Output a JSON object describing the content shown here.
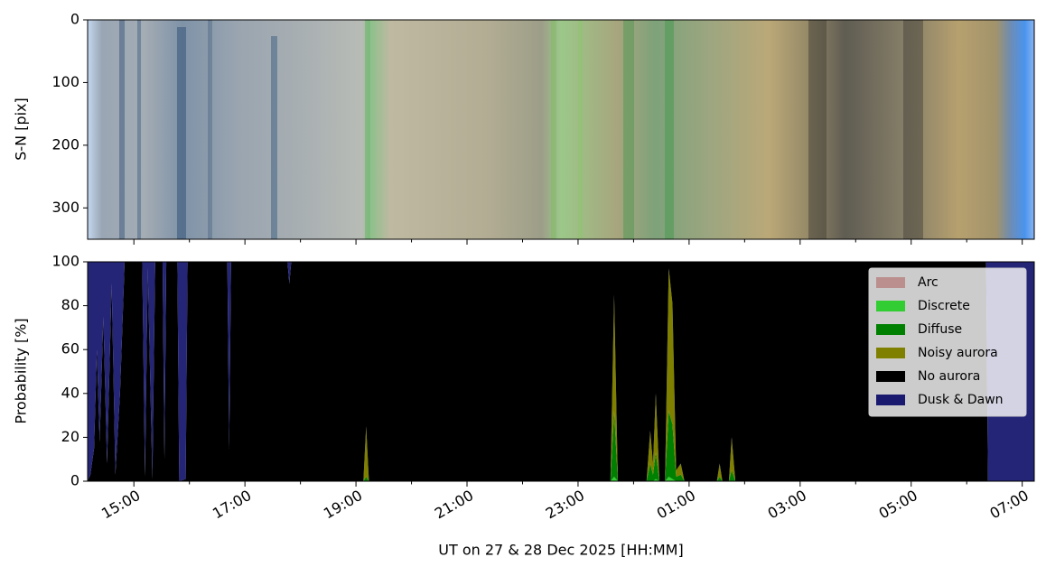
{
  "chart_data": [
    {
      "type": "image",
      "ylabel": "S-N [pix]",
      "ylim": [
        350,
        0
      ],
      "yticks": [
        0,
        100,
        200,
        300
      ]
    },
    {
      "type": "stacked_area",
      "ylabel": "Probability [%]",
      "xlabel": "UT on 27 & 28 Dec 2025 [HH:MM]",
      "ylim": [
        0,
        100
      ],
      "yticks": [
        0,
        20,
        40,
        60,
        80,
        100
      ],
      "legend": "upper right",
      "xlim": [
        "2025-12-27T14:10",
        "2025-12-28T07:13"
      ],
      "xticks": [
        {
          "value": "2025-12-27T15:00",
          "label": "15:00"
        },
        {
          "value": "2025-12-27T17:00",
          "label": "17:00"
        },
        {
          "value": "2025-12-27T19:00",
          "label": "19:00"
        },
        {
          "value": "2025-12-27T21:00",
          "label": "21:00"
        },
        {
          "value": "2025-12-27T23:00",
          "label": "23:00"
        },
        {
          "value": "2025-12-28T01:00",
          "label": "01:00"
        },
        {
          "value": "2025-12-28T03:00",
          "label": "03:00"
        },
        {
          "value": "2025-12-28T05:00",
          "label": "05:00"
        },
        {
          "value": "2025-12-28T07:00",
          "label": "07:00"
        }
      ],
      "xticks_minor": [
        "2025-12-27T16:00",
        "2025-12-27T18:00",
        "2025-12-27T20:00",
        "2025-12-27T22:00",
        "2025-12-28T00:00",
        "2025-12-28T02:00",
        "2025-12-28T04:00",
        "2025-12-28T06:00"
      ],
      "x": [
        "2025-12-27T14:10",
        "2025-12-27T14:13",
        "2025-12-27T14:17",
        "2025-12-27T14:20",
        "2025-12-27T14:23",
        "2025-12-27T14:27",
        "2025-12-27T14:31",
        "2025-12-27T14:36",
        "2025-12-27T14:40",
        "2025-12-27T14:45",
        "2025-12-27T14:50",
        "2025-12-27T15:09",
        "2025-12-27T15:12",
        "2025-12-27T15:15",
        "2025-12-27T15:20",
        "2025-12-27T15:23",
        "2025-12-27T15:31",
        "2025-12-27T15:33",
        "2025-12-27T15:35",
        "2025-12-27T15:47",
        "2025-12-27T15:49",
        "2025-12-27T15:56",
        "2025-12-27T15:58",
        "2025-12-27T16:41",
        "2025-12-27T16:43",
        "2025-12-27T16:45",
        "2025-12-27T17:46",
        "2025-12-27T17:48",
        "2025-12-27T17:50",
        "2025-12-27T19:08",
        "2025-12-27T19:11",
        "2025-12-27T19:14",
        "2025-12-27T23:35",
        "2025-12-27T23:39",
        "2025-12-27T23:43",
        "2025-12-28T00:14",
        "2025-12-28T00:18",
        "2025-12-28T00:21",
        "2025-12-28T00:24",
        "2025-12-28T00:28",
        "2025-12-28T00:34",
        "2025-12-28T00:38",
        "2025-12-28T00:42",
        "2025-12-28T00:46",
        "2025-12-28T00:51",
        "2025-12-28T00:55",
        "2025-12-28T01:30",
        "2025-12-28T01:33",
        "2025-12-28T01:36",
        "2025-12-28T01:43",
        "2025-12-28T01:46",
        "2025-12-28T01:50",
        "2025-12-28T06:21",
        "2025-12-28T06:23",
        "2025-12-28T07:13"
      ],
      "series": [
        {
          "name": "Arc",
          "color": "#bc8f8f",
          "values": [
            0,
            0,
            0,
            0,
            0,
            0,
            0,
            0,
            0,
            0,
            0,
            0,
            0,
            0,
            0,
            0,
            0,
            0,
            0,
            0,
            0,
            0,
            0,
            0,
            0,
            0,
            0,
            0,
            0,
            0,
            0,
            0,
            0,
            0,
            0,
            0,
            0,
            0,
            0,
            0,
            0,
            0,
            0,
            0,
            0,
            0,
            0,
            0,
            0,
            0,
            0,
            0,
            0,
            0,
            0
          ]
        },
        {
          "name": "Discrete",
          "color": "#32cd32",
          "values": [
            0,
            0,
            0,
            0,
            0,
            0,
            0,
            0,
            0,
            0,
            0,
            0,
            0,
            0,
            0,
            0,
            0,
            0,
            0,
            0,
            0,
            0,
            0,
            0,
            0,
            0,
            0,
            0,
            0,
            0,
            0,
            0,
            0,
            2,
            0,
            0,
            0,
            0,
            1,
            0,
            0,
            2,
            1,
            0,
            0,
            0,
            0,
            0,
            0,
            0,
            0,
            0,
            0,
            0,
            0
          ]
        },
        {
          "name": "Diffuse",
          "color": "#008000",
          "values": [
            0,
            0,
            0,
            0,
            0,
            0,
            0,
            0,
            0,
            0,
            0,
            0,
            0,
            0,
            0,
            0,
            0,
            0,
            0,
            0,
            0,
            0,
            0,
            0,
            0,
            0,
            0,
            0,
            0,
            0,
            2,
            0,
            0,
            30,
            0,
            0,
            8,
            3,
            12,
            0,
            0,
            30,
            25,
            2,
            3,
            0,
            0,
            2,
            0,
            0,
            5,
            0,
            0,
            0,
            0
          ]
        },
        {
          "name": "Noisy aurora",
          "color": "#808000",
          "values": [
            0,
            0,
            0,
            0,
            0,
            0,
            0,
            0,
            0,
            0,
            0,
            0,
            0,
            0,
            0,
            0,
            0,
            0,
            0,
            0,
            0,
            0,
            0,
            0,
            0,
            0,
            0,
            0,
            0,
            0,
            23,
            0,
            0,
            53,
            0,
            0,
            15,
            5,
            27,
            0,
            0,
            65,
            55,
            3,
            5,
            0,
            0,
            6,
            0,
            0,
            15,
            0,
            0,
            0,
            0
          ]
        },
        {
          "name": "No aurora",
          "color": "#000000",
          "values": [
            0,
            3,
            15,
            60,
            18,
            75,
            8,
            90,
            3,
            40,
            100,
            100,
            2,
            97,
            1,
            100,
            100,
            10,
            100,
            100,
            0,
            1,
            100,
            100,
            15,
            100,
            100,
            90,
            100,
            100,
            75,
            100,
            100,
            15,
            100,
            100,
            77,
            92,
            60,
            100,
            100,
            3,
            19,
            95,
            92,
            100,
            100,
            92,
            100,
            100,
            80,
            100,
            100,
            0,
            0
          ]
        },
        {
          "name": "Dusk & Dawn",
          "color": "#191970",
          "values": [
            100,
            97,
            85,
            40,
            82,
            25,
            92,
            10,
            97,
            60,
            0,
            0,
            98,
            3,
            99,
            0,
            0,
            90,
            0,
            0,
            100,
            99,
            0,
            0,
            85,
            0,
            0,
            10,
            0,
            0,
            0,
            0,
            0,
            0,
            0,
            0,
            0,
            0,
            0,
            0,
            0,
            0,
            0,
            0,
            0,
            0,
            0,
            0,
            0,
            0,
            0,
            0,
            0,
            100,
            100
          ]
        }
      ]
    }
  ]
}
